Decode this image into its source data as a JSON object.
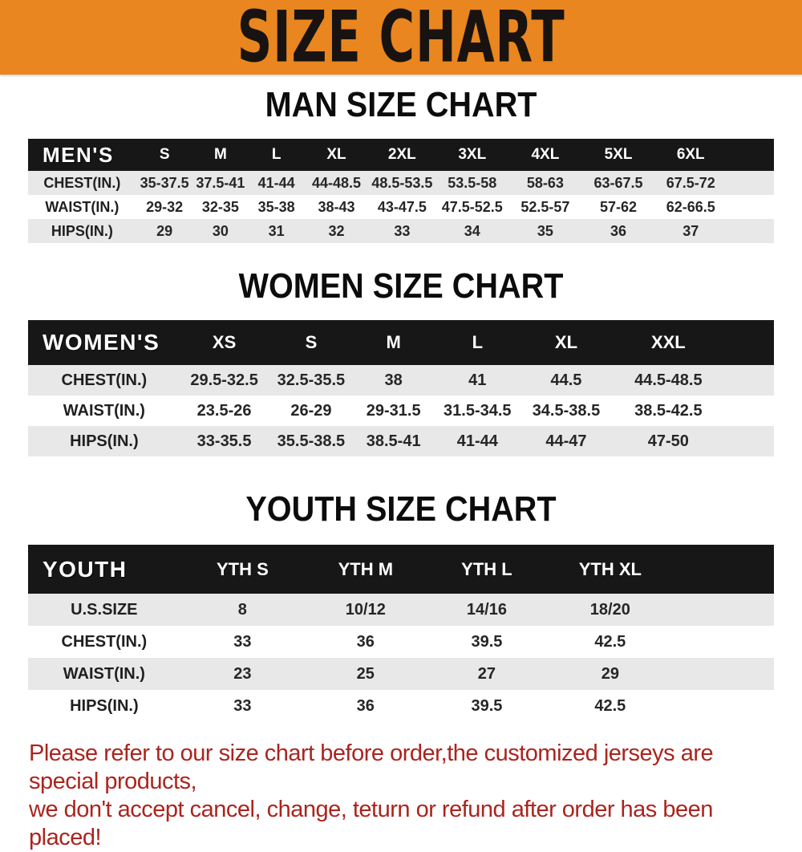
{
  "banner": {
    "title": "SIZE CHART",
    "bg_color": "#E9861F",
    "text_color": "#181310"
  },
  "chart_data": [
    {
      "type": "table",
      "title": "MAN SIZE CHART",
      "header_label": "MEN'S",
      "columns": [
        "S",
        "M",
        "L",
        "XL",
        "2XL",
        "3XL",
        "4XL",
        "5XL",
        "6XL"
      ],
      "rows": [
        {
          "label": "CHEST(IN.)",
          "values": [
            "35-37.5",
            "37.5-41",
            "41-44",
            "44-48.5",
            "48.5-53.5",
            "53.5-58",
            "58-63",
            "63-67.5",
            "67.5-72"
          ]
        },
        {
          "label": "WAIST(IN.)",
          "values": [
            "29-32",
            "32-35",
            "35-38",
            "38-43",
            "43-47.5",
            "47.5-52.5",
            "52.5-57",
            "57-62",
            "62-66.5"
          ]
        },
        {
          "label": "HIPS(IN.)",
          "values": [
            "29",
            "30",
            "31",
            "32",
            "33",
            "34",
            "35",
            "36",
            "37"
          ]
        }
      ]
    },
    {
      "type": "table",
      "title": "WOMEN SIZE CHART",
      "header_label": "WOMEN'S",
      "columns": [
        "XS",
        "S",
        "M",
        "L",
        "XL",
        "XXL"
      ],
      "rows": [
        {
          "label": "CHEST(IN.)",
          "values": [
            "29.5-32.5",
            "32.5-35.5",
            "38",
            "41",
            "44.5",
            "44.5-48.5"
          ]
        },
        {
          "label": "WAIST(IN.)",
          "values": [
            "23.5-26",
            "26-29",
            "29-31.5",
            "31.5-34.5",
            "34.5-38.5",
            "38.5-42.5"
          ]
        },
        {
          "label": "HIPS(IN.)",
          "values": [
            "33-35.5",
            "35.5-38.5",
            "38.5-41",
            "41-44",
            "44-47",
            "47-50"
          ]
        }
      ]
    },
    {
      "type": "table",
      "title": "YOUTH SIZE CHART",
      "header_label": "YOUTH",
      "columns": [
        "YTH S",
        "YTH M",
        "YTH L",
        "YTH XL"
      ],
      "rows": [
        {
          "label": "U.S.SIZE",
          "values": [
            "8",
            "10/12",
            "14/16",
            "18/20"
          ]
        },
        {
          "label": "CHEST(IN.)",
          "values": [
            "33",
            "36",
            "39.5",
            "42.5"
          ]
        },
        {
          "label": "WAIST(IN.)",
          "values": [
            "23",
            "25",
            "27",
            "29"
          ]
        },
        {
          "label": "HIPS(IN.)",
          "values": [
            "33",
            "36",
            "39.5",
            "42.5"
          ]
        }
      ]
    }
  ],
  "footer": {
    "lines": [
      "Please refer to our size chart before order,the customized jerseys are special products,",
      "we don't accept cancel, change, teturn or refund after order has been placed!"
    ],
    "color": "#AB241E"
  },
  "colors": {
    "header_bar_bg": "#171717",
    "header_bar_text": "#FFFFFF",
    "row_stripe": "#E8E8E8",
    "body_text": "#262626",
    "heading_text": "#0C0C0C"
  }
}
